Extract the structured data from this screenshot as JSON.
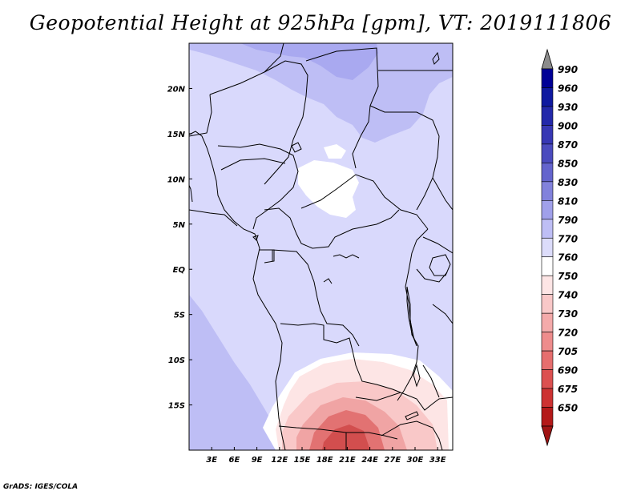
{
  "title": "Geopotential Height at 925hPa [gpm], VT: 2019111806",
  "credit": "GrADS: IGES/COLA",
  "map": {
    "lon_range": [
      0,
      35
    ],
    "lat_range": [
      -20,
      25
    ],
    "x_ticks": [
      {
        "lon": 3,
        "label": "3E"
      },
      {
        "lon": 6,
        "label": "6E"
      },
      {
        "lon": 9,
        "label": "9E"
      },
      {
        "lon": 12,
        "label": "12E"
      },
      {
        "lon": 15,
        "label": "15E"
      },
      {
        "lon": 18,
        "label": "18E"
      },
      {
        "lon": 21,
        "label": "21E"
      },
      {
        "lon": 24,
        "label": "24E"
      },
      {
        "lon": 27,
        "label": "27E"
      },
      {
        "lon": 30,
        "label": "30E"
      },
      {
        "lon": 33,
        "label": "33E"
      }
    ],
    "y_ticks": [
      {
        "lat": 20,
        "label": "20N"
      },
      {
        "lat": 15,
        "label": "15N"
      },
      {
        "lat": 10,
        "label": "10N"
      },
      {
        "lat": 5,
        "label": "5N"
      },
      {
        "lat": 0,
        "label": "EQ"
      },
      {
        "lat": -5,
        "label": "5S"
      },
      {
        "lat": -10,
        "label": "10S"
      },
      {
        "lat": -15,
        "label": "15S"
      }
    ]
  },
  "colorbar": {
    "levels": [
      {
        "label": "990",
        "color": "#000096"
      },
      {
        "label": "960",
        "color": "#0f19a0"
      },
      {
        "label": "930",
        "color": "#2328aa"
      },
      {
        "label": "900",
        "color": "#3737b4"
      },
      {
        "label": "870",
        "color": "#4b4bbe"
      },
      {
        "label": "850",
        "color": "#6464cd"
      },
      {
        "label": "830",
        "color": "#8282dc"
      },
      {
        "label": "810",
        "color": "#a0a0ea"
      },
      {
        "label": "790",
        "color": "#bebef5"
      },
      {
        "label": "770",
        "color": "#dcdcfa"
      },
      {
        "label": "760",
        "color": "#ffffff"
      },
      {
        "label": "750",
        "color": "#fde5e5"
      },
      {
        "label": "740",
        "color": "#f9c8c8"
      },
      {
        "label": "730",
        "color": "#f4aaaa"
      },
      {
        "label": "720",
        "color": "#ee8c8c"
      },
      {
        "label": "705",
        "color": "#e66e6e"
      },
      {
        "label": "690",
        "color": "#dc5050"
      },
      {
        "label": "675",
        "color": "#cd3232"
      },
      {
        "label": "650",
        "color": "#b41919"
      }
    ],
    "top_arrow_color": "#8c8c8c",
    "bottom_arrow_color": "#a01414"
  },
  "colors": {
    "base": "#d9d9fc",
    "mid_blue": "#bebef5",
    "dark_blue": "#a9a9f0",
    "white": "#ffffff",
    "light_pink": "#fde5e5",
    "pink": "#f9c8c8",
    "mid_pink": "#f0a4a4",
    "red": "#e27272",
    "dark_red": "#d24e4e"
  }
}
